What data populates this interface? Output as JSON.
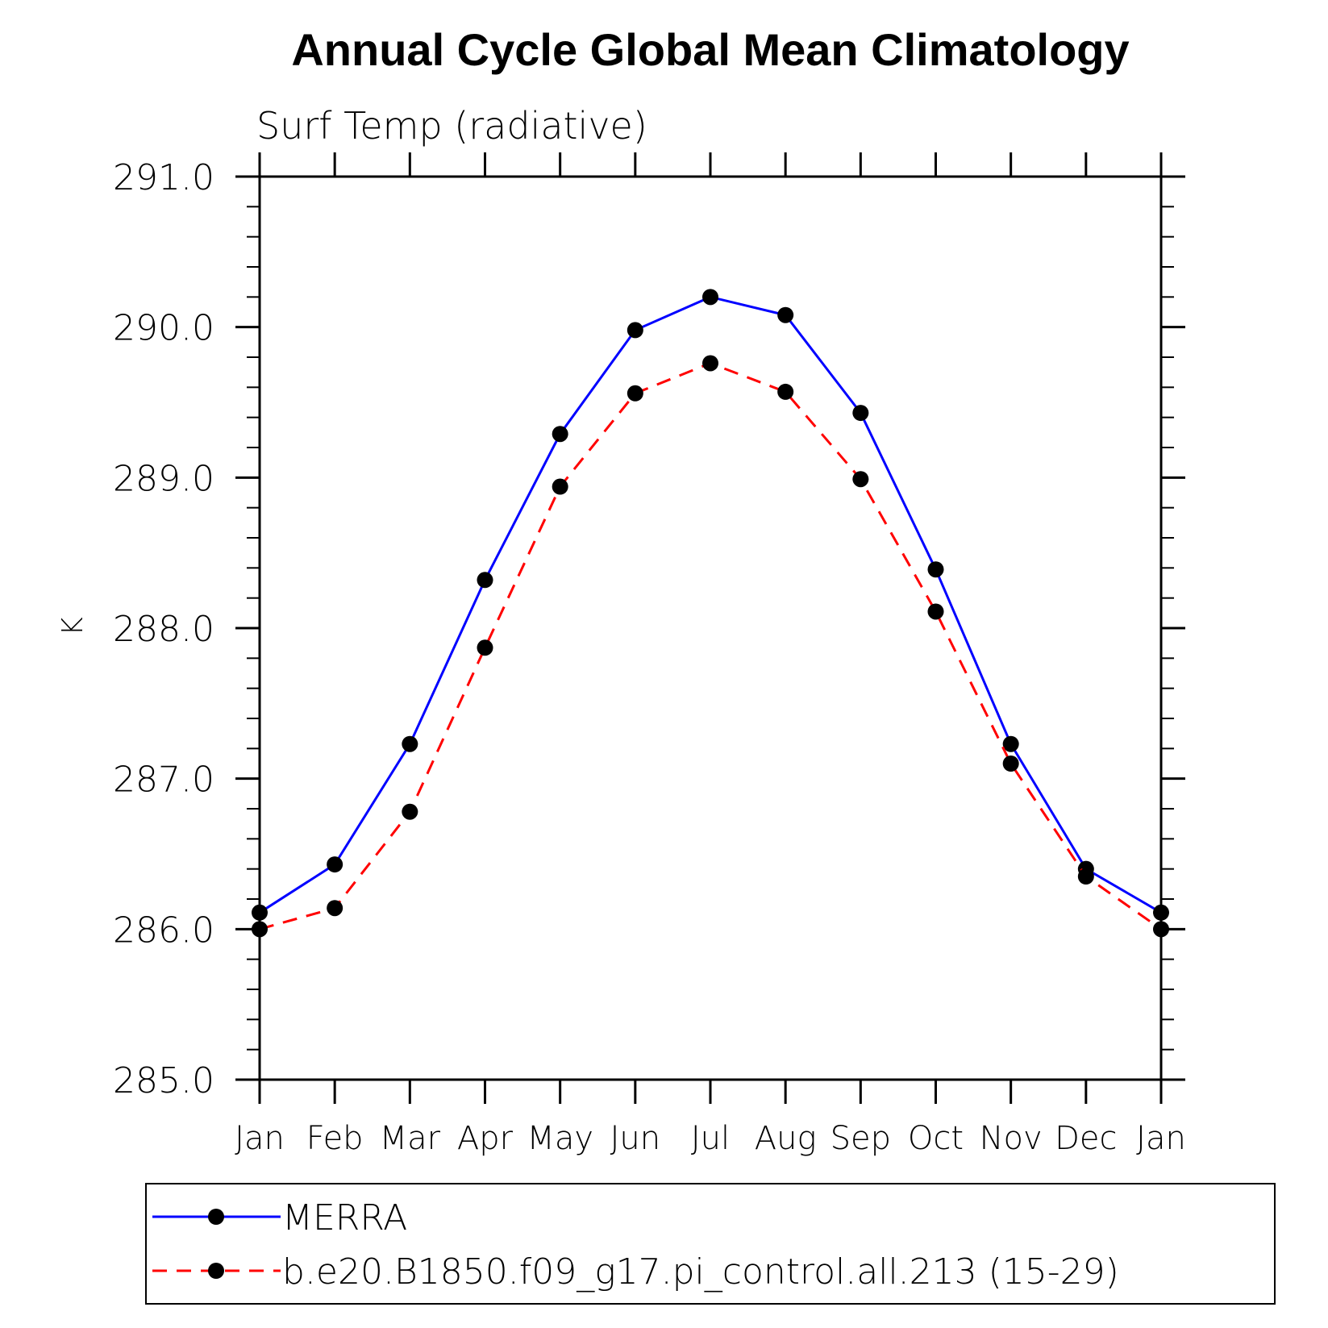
{
  "chart_data": {
    "type": "line",
    "title": "Annual Cycle Global Mean Climatology",
    "subtitle": "Surf Temp (radiative)",
    "xlabel": "",
    "ylabel": "K",
    "categories": [
      "Jan",
      "Feb",
      "Mar",
      "Apr",
      "May",
      "Jun",
      "Jul",
      "Aug",
      "Sep",
      "Oct",
      "Nov",
      "Dec",
      "Jan"
    ],
    "yticks": [
      "285.0",
      "286.0",
      "287.0",
      "288.0",
      "289.0",
      "290.0",
      "291.0"
    ],
    "ylim": [
      285.0,
      291.0
    ],
    "grid": false,
    "legend_position": "bottom",
    "series": [
      {
        "name": "MERRA",
        "color": "#0000ff",
        "line_style": "solid",
        "marker": "filled-circle",
        "values": [
          286.11,
          286.43,
          287.23,
          288.32,
          289.29,
          289.98,
          290.2,
          290.08,
          289.43,
          288.39,
          287.23,
          286.4,
          286.11
        ]
      },
      {
        "name": "b.e20.B1850.f09_g17.pi_control.all.213 (15-29)",
        "color": "#ff0000",
        "line_style": "dashed",
        "marker": "filled-circle",
        "values": [
          286.0,
          286.14,
          286.78,
          287.87,
          288.94,
          289.56,
          289.76,
          289.57,
          288.99,
          288.11,
          287.1,
          286.35,
          286.0
        ]
      }
    ]
  }
}
